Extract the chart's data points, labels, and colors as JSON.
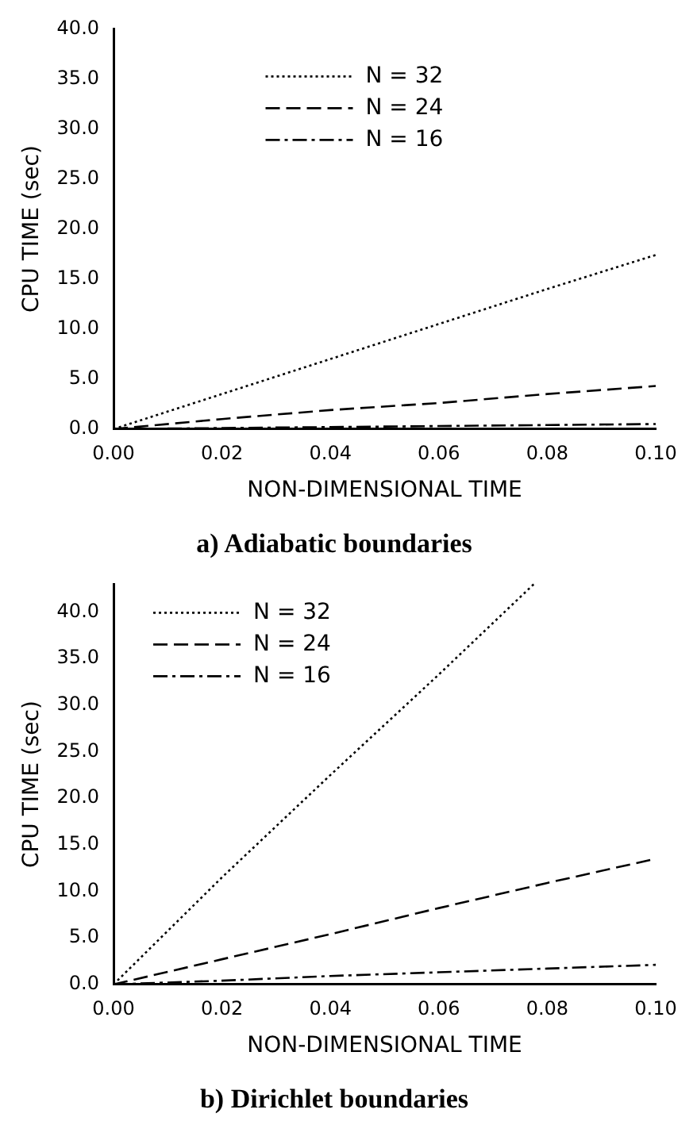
{
  "chart_data": [
    {
      "type": "line",
      "title": "a) Adiabatic boundaries",
      "xlabel": "NON-DIMENSIONAL TIME",
      "ylabel": "CPU TIME (sec)",
      "x": [
        0,
        0.02,
        0.04,
        0.06,
        0.08,
        0.1
      ],
      "series": [
        {
          "name": "N = 32",
          "color": "#000000",
          "line_style": "dotted",
          "values": [
            0,
            3.5,
            7.0,
            10.5,
            14.0,
            17.4
          ]
        },
        {
          "name": "N = 24",
          "color": "#000000",
          "line_style": "dashed",
          "values": [
            0,
            1.0,
            1.9,
            2.6,
            3.5,
            4.3
          ]
        },
        {
          "name": "N = 16",
          "color": "#000000",
          "line_style": "dashdot",
          "values": [
            0,
            0.1,
            0.2,
            0.3,
            0.4,
            0.5
          ]
        }
      ],
      "xlim": [
        0,
        0.1
      ],
      "xticks": [
        {
          "value": 0,
          "label": "0.00"
        },
        {
          "value": 0.02,
          "label": "0.02"
        },
        {
          "value": 0.04,
          "label": "0.04"
        },
        {
          "value": 0.06,
          "label": "0.06"
        },
        {
          "value": 0.08,
          "label": "0.08"
        },
        {
          "value": 0.1,
          "label": "0.10"
        }
      ],
      "ylim": [
        0,
        40
      ],
      "yticks": [
        {
          "value": 0,
          "label": "0.0"
        },
        {
          "value": 5,
          "label": "5.0"
        },
        {
          "value": 10,
          "label": "10.0"
        },
        {
          "value": 15,
          "label": "15.0"
        },
        {
          "value": 20,
          "label": "20.0"
        },
        {
          "value": 25,
          "label": "25.0"
        },
        {
          "value": 30,
          "label": "30.0"
        },
        {
          "value": 35,
          "label": "35.0"
        },
        {
          "value": 40,
          "label": "40.0"
        }
      ],
      "legend": "top",
      "marker": "none",
      "grid": false
    },
    {
      "type": "line",
      "title": "b) Dirichlet boundaries",
      "xlabel": "NON-DIMENSIONAL TIME",
      "ylabel": "CPU TIME (sec)",
      "series": [
        {
          "name": "N = 32",
          "color": "#000000",
          "line_style": "dotted",
          "x": [
            0,
            0.02,
            0.04,
            0.06,
            0.0775
          ],
          "values": [
            0,
            11.5,
            22.5,
            33.3,
            43.0
          ]
        },
        {
          "name": "N = 24",
          "color": "#000000",
          "line_style": "dashed",
          "x": [
            0,
            0.02,
            0.04,
            0.06,
            0.08,
            0.1
          ],
          "values": [
            0,
            2.7,
            5.4,
            8.2,
            10.9,
            13.5
          ]
        },
        {
          "name": "N = 16",
          "color": "#000000",
          "line_style": "dashdot",
          "x": [
            0,
            0.02,
            0.04,
            0.06,
            0.08,
            0.1
          ],
          "values": [
            0,
            0.4,
            0.9,
            1.3,
            1.7,
            2.1
          ]
        }
      ],
      "xlim": [
        0,
        0.1
      ],
      "xticks": [
        {
          "value": 0,
          "label": "0.00"
        },
        {
          "value": 0.02,
          "label": "0.02"
        },
        {
          "value": 0.04,
          "label": "0.04"
        },
        {
          "value": 0.06,
          "label": "0.06"
        },
        {
          "value": 0.08,
          "label": "0.08"
        },
        {
          "value": 0.1,
          "label": "0.10"
        }
      ],
      "ylim": [
        0,
        43
      ],
      "yticks": [
        {
          "value": 0,
          "label": "0.0"
        },
        {
          "value": 5,
          "label": "5.0"
        },
        {
          "value": 10,
          "label": "10.0"
        },
        {
          "value": 15,
          "label": "15.0"
        },
        {
          "value": 20,
          "label": "20.0"
        },
        {
          "value": 25,
          "label": "25.0"
        },
        {
          "value": 30,
          "label": "30.0"
        },
        {
          "value": 35,
          "label": "35.0"
        },
        {
          "value": 40,
          "label": "40.0"
        }
      ],
      "legend": "top left",
      "marker": "none",
      "grid": false
    }
  ]
}
